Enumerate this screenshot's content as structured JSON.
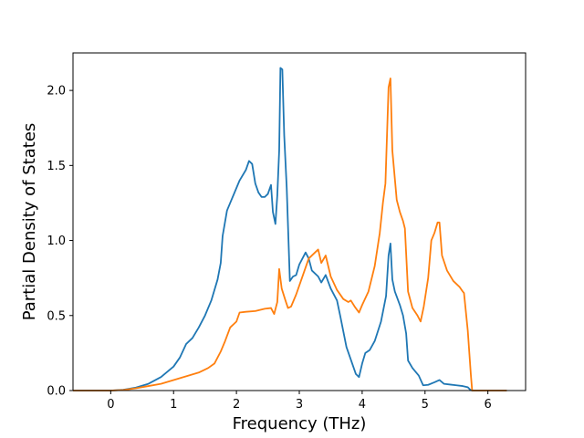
{
  "chart_data": {
    "type": "line",
    "title": "",
    "xlabel": "Frequency (THz)",
    "ylabel": "Partial Density of States",
    "xlim": [
      -0.6,
      6.6
    ],
    "ylim": [
      0.0,
      2.25
    ],
    "xticks": [
      0,
      1,
      2,
      3,
      4,
      5,
      6
    ],
    "xtick_labels": [
      "0",
      "1",
      "2",
      "3",
      "4",
      "5",
      "6"
    ],
    "yticks": [
      0.0,
      0.5,
      1.0,
      1.5,
      2.0
    ],
    "ytick_labels": [
      "0.0",
      "0.5",
      "1.0",
      "1.5",
      "2.0"
    ],
    "grid": false,
    "legend": "none",
    "series": [
      {
        "color": "#1f77b4",
        "points": [
          [
            -0.6,
            0.0
          ],
          [
            0.0,
            0.0
          ],
          [
            0.2,
            0.005
          ],
          [
            0.4,
            0.02
          ],
          [
            0.6,
            0.045
          ],
          [
            0.8,
            0.09
          ],
          [
            1.0,
            0.16
          ],
          [
            1.1,
            0.22
          ],
          [
            1.2,
            0.31
          ],
          [
            1.3,
            0.35
          ],
          [
            1.4,
            0.42
          ],
          [
            1.5,
            0.5
          ],
          [
            1.6,
            0.6
          ],
          [
            1.7,
            0.74
          ],
          [
            1.75,
            0.85
          ],
          [
            1.78,
            1.03
          ],
          [
            1.85,
            1.2
          ],
          [
            1.95,
            1.3
          ],
          [
            2.05,
            1.4
          ],
          [
            2.15,
            1.47
          ],
          [
            2.2,
            1.53
          ],
          [
            2.25,
            1.51
          ],
          [
            2.3,
            1.38
          ],
          [
            2.35,
            1.32
          ],
          [
            2.4,
            1.29
          ],
          [
            2.45,
            1.29
          ],
          [
            2.5,
            1.31
          ],
          [
            2.55,
            1.37
          ],
          [
            2.58,
            1.19
          ],
          [
            2.62,
            1.11
          ],
          [
            2.65,
            1.3
          ],
          [
            2.68,
            1.6
          ],
          [
            2.7,
            2.15
          ],
          [
            2.73,
            2.14
          ],
          [
            2.76,
            1.7
          ],
          [
            2.8,
            1.35
          ],
          [
            2.85,
            0.73
          ],
          [
            2.9,
            0.76
          ],
          [
            2.95,
            0.77
          ],
          [
            3.0,
            0.84
          ],
          [
            3.05,
            0.88
          ],
          [
            3.1,
            0.92
          ],
          [
            3.15,
            0.88
          ],
          [
            3.2,
            0.8
          ],
          [
            3.3,
            0.76
          ],
          [
            3.35,
            0.72
          ],
          [
            3.42,
            0.77
          ],
          [
            3.5,
            0.68
          ],
          [
            3.6,
            0.6
          ],
          [
            3.65,
            0.5
          ],
          [
            3.75,
            0.29
          ],
          [
            3.85,
            0.17
          ],
          [
            3.9,
            0.11
          ],
          [
            3.95,
            0.09
          ],
          [
            4.0,
            0.18
          ],
          [
            4.05,
            0.25
          ],
          [
            4.12,
            0.27
          ],
          [
            4.2,
            0.33
          ],
          [
            4.3,
            0.46
          ],
          [
            4.38,
            0.63
          ],
          [
            4.42,
            0.9
          ],
          [
            4.45,
            0.98
          ],
          [
            4.48,
            0.74
          ],
          [
            4.52,
            0.66
          ],
          [
            4.6,
            0.57
          ],
          [
            4.65,
            0.5
          ],
          [
            4.7,
            0.38
          ],
          [
            4.73,
            0.2
          ],
          [
            4.8,
            0.15
          ],
          [
            4.9,
            0.1
          ],
          [
            4.97,
            0.035
          ],
          [
            5.05,
            0.038
          ],
          [
            5.15,
            0.055
          ],
          [
            5.23,
            0.07
          ],
          [
            5.3,
            0.045
          ],
          [
            5.4,
            0.04
          ],
          [
            5.5,
            0.035
          ],
          [
            5.6,
            0.03
          ],
          [
            5.68,
            0.022
          ],
          [
            5.72,
            0.005
          ],
          [
            5.75,
            0.0
          ],
          [
            6.3,
            0.0
          ]
        ]
      },
      {
        "color": "#ff7f0e",
        "points": [
          [
            -0.6,
            0.0
          ],
          [
            0.0,
            0.0
          ],
          [
            0.2,
            0.004
          ],
          [
            0.4,
            0.015
          ],
          [
            0.6,
            0.03
          ],
          [
            0.8,
            0.045
          ],
          [
            1.0,
            0.07
          ],
          [
            1.2,
            0.095
          ],
          [
            1.4,
            0.12
          ],
          [
            1.55,
            0.15
          ],
          [
            1.65,
            0.18
          ],
          [
            1.75,
            0.26
          ],
          [
            1.82,
            0.33
          ],
          [
            1.9,
            0.42
          ],
          [
            2.0,
            0.46
          ],
          [
            2.05,
            0.52
          ],
          [
            2.15,
            0.525
          ],
          [
            2.3,
            0.53
          ],
          [
            2.45,
            0.545
          ],
          [
            2.55,
            0.55
          ],
          [
            2.6,
            0.51
          ],
          [
            2.65,
            0.59
          ],
          [
            2.68,
            0.81
          ],
          [
            2.72,
            0.68
          ],
          [
            2.78,
            0.6
          ],
          [
            2.82,
            0.55
          ],
          [
            2.87,
            0.56
          ],
          [
            2.95,
            0.64
          ],
          [
            3.05,
            0.76
          ],
          [
            3.15,
            0.88
          ],
          [
            3.25,
            0.92
          ],
          [
            3.3,
            0.94
          ],
          [
            3.35,
            0.85
          ],
          [
            3.42,
            0.9
          ],
          [
            3.5,
            0.76
          ],
          [
            3.6,
            0.67
          ],
          [
            3.7,
            0.61
          ],
          [
            3.78,
            0.59
          ],
          [
            3.82,
            0.6
          ],
          [
            3.88,
            0.56
          ],
          [
            3.95,
            0.52
          ],
          [
            4.0,
            0.57
          ],
          [
            4.1,
            0.66
          ],
          [
            4.2,
            0.83
          ],
          [
            4.28,
            1.05
          ],
          [
            4.33,
            1.25
          ],
          [
            4.37,
            1.38
          ],
          [
            4.42,
            2.02
          ],
          [
            4.45,
            2.08
          ],
          [
            4.48,
            1.6
          ],
          [
            4.55,
            1.27
          ],
          [
            4.6,
            1.19
          ],
          [
            4.65,
            1.13
          ],
          [
            4.68,
            1.08
          ],
          [
            4.73,
            0.66
          ],
          [
            4.8,
            0.55
          ],
          [
            4.88,
            0.5
          ],
          [
            4.93,
            0.46
          ],
          [
            4.98,
            0.56
          ],
          [
            5.05,
            0.75
          ],
          [
            5.1,
            1.0
          ],
          [
            5.15,
            1.05
          ],
          [
            5.2,
            1.12
          ],
          [
            5.23,
            1.12
          ],
          [
            5.27,
            0.9
          ],
          [
            5.35,
            0.8
          ],
          [
            5.45,
            0.73
          ],
          [
            5.55,
            0.69
          ],
          [
            5.6,
            0.66
          ],
          [
            5.62,
            0.65
          ],
          [
            5.68,
            0.4
          ],
          [
            5.73,
            0.1
          ],
          [
            5.75,
            0.0
          ],
          [
            6.3,
            0.0
          ]
        ]
      }
    ]
  }
}
